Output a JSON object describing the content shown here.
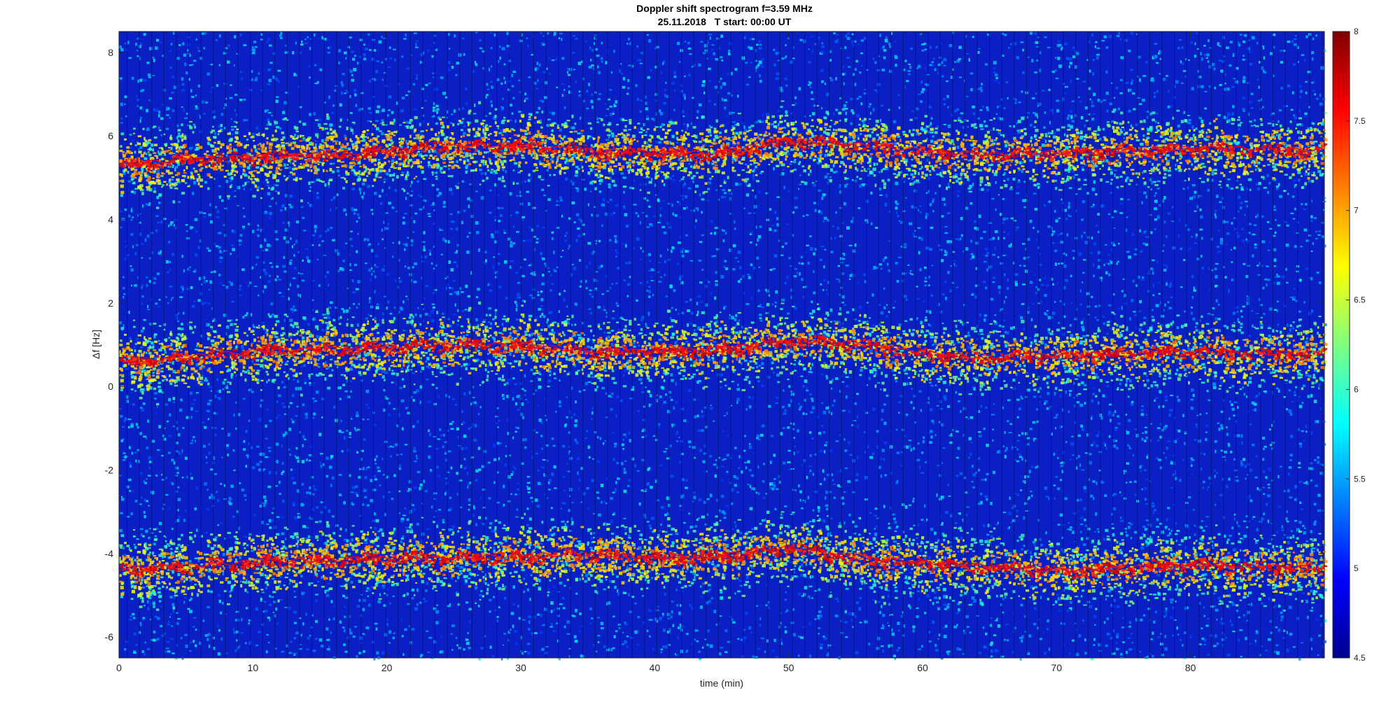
{
  "chart_data": {
    "type": "heatmap",
    "title": "Doppler shift spectrogram f=3.59 MHz",
    "subtitle": "25.11.2018   T start: 00:00 UT",
    "xlabel": "time (min)",
    "ylabel": "Δf [Hz]",
    "xlim": [
      0,
      90
    ],
    "ylim": [
      -6.5,
      8.5
    ],
    "x_ticks": [
      0,
      10,
      20,
      30,
      40,
      50,
      60,
      70,
      80
    ],
    "y_ticks": [
      -6,
      -4,
      -2,
      0,
      2,
      4,
      6,
      8
    ],
    "colorbar": {
      "colormap": "jet",
      "clim": [
        4.5,
        8
      ],
      "ticks": [
        4.5,
        5,
        5.5,
        6,
        6.5,
        7,
        7.5,
        8
      ]
    },
    "grid": false,
    "bands": [
      {
        "t": [
          0,
          5,
          10,
          15,
          20,
          25,
          30,
          35,
          40,
          45,
          50,
          55,
          60,
          65,
          70,
          75,
          80,
          85,
          90
        ],
        "f": [
          5.3,
          5.45,
          5.5,
          5.55,
          5.65,
          5.75,
          5.8,
          5.65,
          5.6,
          5.6,
          5.9,
          5.8,
          5.65,
          5.55,
          5.6,
          5.65,
          5.7,
          5.7,
          5.65
        ]
      },
      {
        "t": [
          0,
          5,
          10,
          15,
          20,
          25,
          30,
          35,
          40,
          45,
          50,
          55,
          60,
          65,
          70,
          75,
          80,
          85,
          90
        ],
        "f": [
          0.6,
          0.7,
          0.85,
          0.9,
          0.95,
          1.0,
          1.0,
          0.85,
          0.85,
          0.9,
          1.1,
          1.05,
          0.8,
          0.7,
          0.75,
          0.8,
          0.85,
          0.8,
          0.8
        ]
      },
      {
        "t": [
          0,
          5,
          10,
          15,
          20,
          25,
          30,
          35,
          40,
          45,
          50,
          55,
          60,
          65,
          70,
          75,
          80,
          85,
          90
        ],
        "f": [
          -4.35,
          -4.3,
          -4.2,
          -4.15,
          -4.1,
          -4.1,
          -4.05,
          -4.0,
          -4.1,
          -4.05,
          -3.85,
          -4.1,
          -4.2,
          -4.3,
          -4.4,
          -4.35,
          -4.25,
          -4.3,
          -4.35
        ]
      }
    ]
  }
}
